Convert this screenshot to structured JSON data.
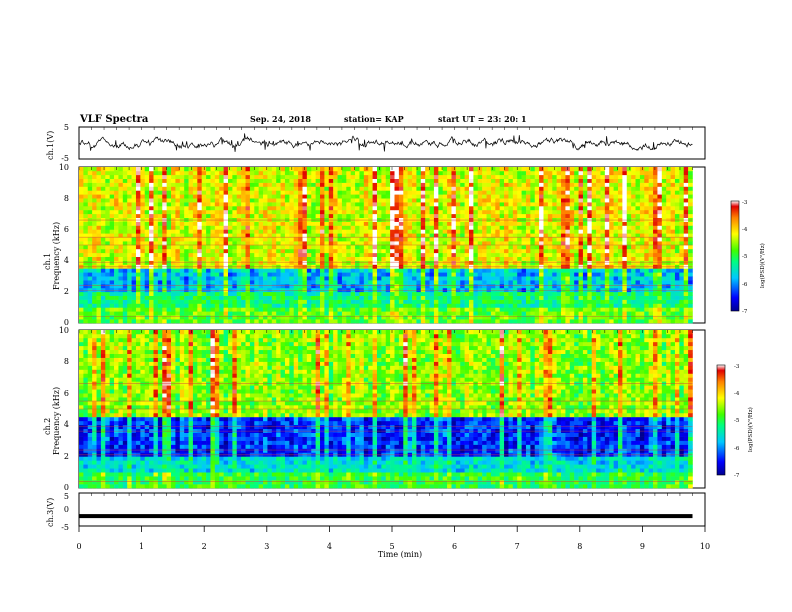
{
  "header": {
    "title": "VLF Spectra",
    "date": "Sep. 24, 2018",
    "station": "station= KAP",
    "start": "start  UT =  23: 20: 1"
  },
  "chart_data": [
    {
      "type": "line",
      "panel": "ch1-waveform",
      "ylabel": "ch.1(V)",
      "ylim": [
        -5,
        5
      ],
      "yticks": [
        "5",
        "-5"
      ],
      "xlim": [
        0,
        10
      ],
      "series": [
        {
          "values_desc": "noisy waveform, amplitude about ±1.5 V around 0, from 0 to 9.8 min"
        }
      ]
    },
    {
      "type": "heatmap",
      "panel": "ch1-spectrogram",
      "ylabel": "ch.1\nFrequency (kHz)",
      "ylabel_line1": "ch.1",
      "ylabel_line2": "Frequency (kHz)",
      "ylim": [
        0,
        10
      ],
      "yticks": [
        "0",
        "2",
        "4",
        "6",
        "8",
        "10"
      ],
      "xlim": [
        0,
        9.8
      ],
      "dominant_levels": {
        "0-1 kHz": -4.8,
        "1-2 kHz": -5.2,
        "2-3.5 kHz": -5.8,
        "3.5-10 kHz": -4.3
      },
      "colorbar": {
        "label": "log(PSD)(V²/Hz)",
        "range": [
          -7,
          -3
        ],
        "ticks": [
          "-3",
          "-4",
          "-5",
          "-6",
          "-7"
        ]
      }
    },
    {
      "type": "heatmap",
      "panel": "ch2-spectrogram",
      "ylabel_line1": "ch.2",
      "ylabel_line2": "Frequency (kHz)",
      "ylim": [
        0,
        10
      ],
      "yticks": [
        "0",
        "2",
        "4",
        "6",
        "8",
        "10"
      ],
      "xlim": [
        0,
        9.8
      ],
      "dominant_levels": {
        "0-1 kHz": -5.0,
        "1-2 kHz": -5.6,
        "2-4.5 kHz": -6.4,
        "4.5-10 kHz": -4.6
      },
      "colorbar": {
        "label": "log(PSD)(V²/Hz)",
        "range": [
          -7,
          -3
        ],
        "ticks": [
          "-3",
          "-4",
          "-5",
          "-6",
          "-7"
        ]
      }
    },
    {
      "type": "line",
      "panel": "ch3-waveform",
      "ylabel": "ch.3(V)",
      "ylim": [
        -5,
        5
      ],
      "yticks": [
        "5",
        "0",
        "-5"
      ],
      "xlim": [
        0,
        10
      ],
      "xlabel": "Time  (min)",
      "xticks": [
        "0",
        "1",
        "2",
        "3",
        "4",
        "5",
        "6",
        "7",
        "8",
        "9",
        "10"
      ],
      "series": [
        {
          "values_desc": "flat line at about -2 V from 0 to 9.8 min"
        }
      ]
    }
  ]
}
